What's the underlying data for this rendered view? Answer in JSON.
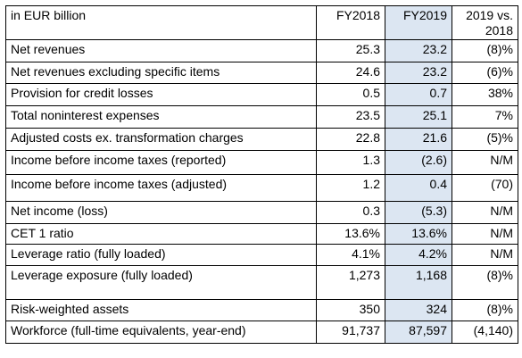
{
  "table": {
    "headers": [
      "in EUR billion",
      "FY2018",
      "FY2019",
      "2019 vs. 2018"
    ],
    "highlight_color": "#dce6f2",
    "rows": [
      {
        "label": "Net revenues",
        "fy2018": "25.3",
        "fy2019": "23.2",
        "change": "(8)%"
      },
      {
        "label": "Net revenues excluding specific items",
        "fy2018": "24.6",
        "fy2019": "23.2",
        "change": "(6)%"
      },
      {
        "label": "Provision for credit losses",
        "fy2018": "0.5",
        "fy2019": "0.7",
        "change": "38%"
      },
      {
        "label": "Total noninterest expenses",
        "fy2018": "23.5",
        "fy2019": "25.1",
        "change": "7%"
      },
      {
        "label": "Adjusted costs ex. transformation charges",
        "fy2018": "22.8",
        "fy2019": "21.6",
        "change": "(5)%"
      },
      {
        "label": "Income before income taxes (reported)",
        "fy2018": "1.3",
        "fy2019": "(2.6)",
        "change": "N/M"
      },
      {
        "label": "Income before income taxes (adjusted)",
        "fy2018": "1.2",
        "fy2019": "0.4",
        "change": "(70)"
      },
      {
        "label": "Net income (loss)",
        "fy2018": "0.3",
        "fy2019": "(5.3)",
        "change": "N/M"
      },
      {
        "label": "CET 1 ratio",
        "fy2018": "13.6%",
        "fy2019": "13.6%",
        "change": "N/M"
      },
      {
        "label": "Leverage ratio (fully loaded)",
        "fy2018": "4.1%",
        "fy2019": "4.2%",
        "change": "N/M"
      },
      {
        "label": "Leverage exposure (fully loaded)",
        "fy2018": "1,273",
        "fy2019": "1,168",
        "change": "(8)%"
      },
      {
        "label": "Risk-weighted assets",
        "fy2018": "350",
        "fy2019": "324",
        "change": "(8)%"
      },
      {
        "label": "Workforce (full-time equivalents, year-end)",
        "fy2018": "91,737",
        "fy2019": "87,597",
        "change": "(4,140)"
      }
    ]
  }
}
